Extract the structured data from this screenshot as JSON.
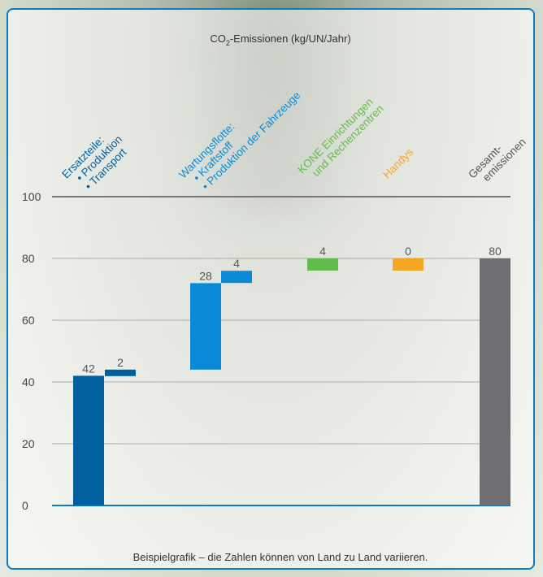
{
  "chart_data": {
    "type": "bar",
    "title_prefix": "CO",
    "title_sub": "2",
    "title_suffix": "-Emissionen (kg/UN/Jahr)",
    "ylim": [
      0,
      100
    ],
    "yticks": [
      0,
      20,
      40,
      60,
      80,
      100
    ],
    "grid": true,
    "bars": [
      {
        "label": "42",
        "start": 0,
        "end": 42,
        "color": "#00609f"
      },
      {
        "label": "2",
        "start": 42,
        "end": 44,
        "color": "#00609f"
      },
      {
        "label": "28",
        "start": 44,
        "end": 72,
        "color": "#0a8ad6"
      },
      {
        "label": "4",
        "start": 72,
        "end": 76,
        "color": "#0a8ad6"
      },
      {
        "label": "4",
        "start": 76,
        "end": 80,
        "color": "#62bc4b"
      },
      {
        "label": "0",
        "start": 76,
        "end": 80,
        "color": "#f5a625"
      },
      {
        "label": "80",
        "start": 0,
        "end": 80,
        "color": "#6e6e72"
      }
    ],
    "categories": [
      {
        "lines": [
          "Ersatzteile:",
          "• Produktion",
          "• Transport"
        ],
        "color": "#00609f"
      },
      {
        "lines": [
          "Wartungsflotte:",
          "• Kraftstoff",
          "• Produktion der Fahrzeuge"
        ],
        "color": "#0a8ad6"
      },
      {
        "lines": [
          "KONE Einrichtungen",
          "und Rechenzentren"
        ],
        "color": "#62bc4b"
      },
      {
        "lines": [
          "Handys"
        ],
        "color": "#f5a625"
      },
      {
        "lines": [
          "Gesamt-",
          "emissionen"
        ],
        "color": "#555555"
      }
    ],
    "footnote": "Beispielgrafik – die Zahlen können von Land zu Land variieren."
  }
}
